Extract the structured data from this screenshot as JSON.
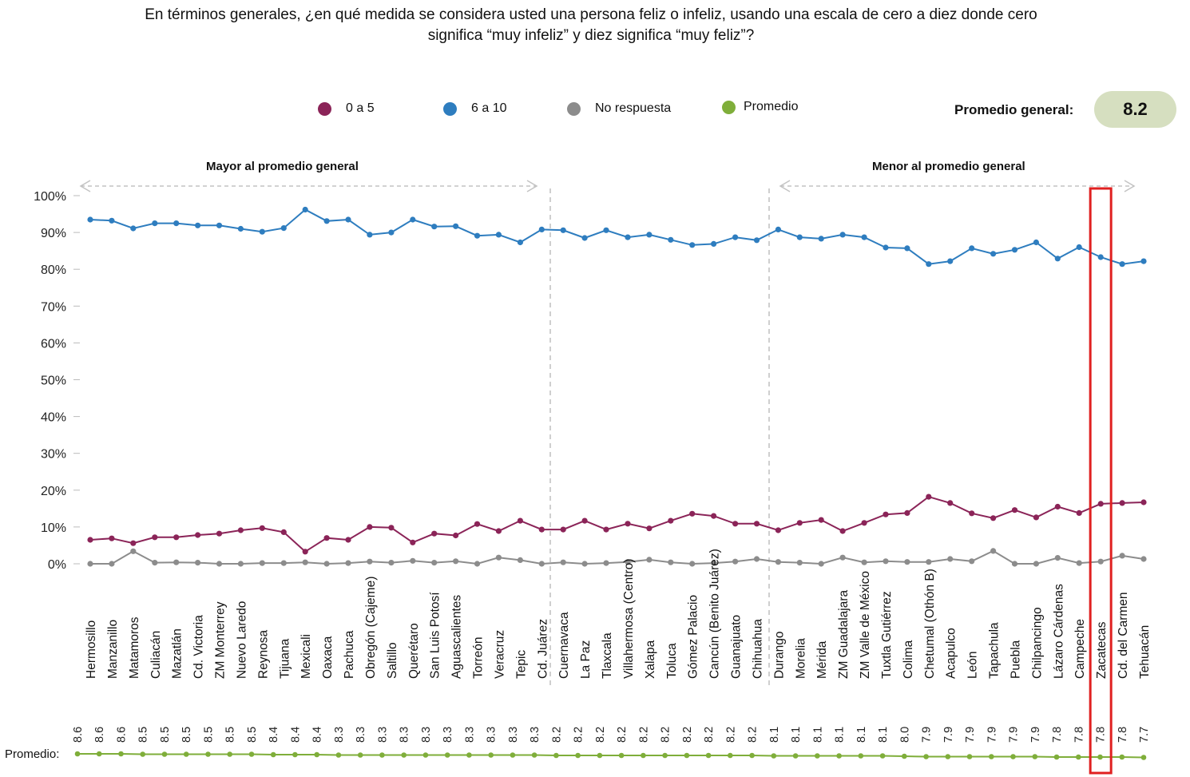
{
  "question": {
    "line1": "En términos generales, ¿en qué medida se considera usted una persona feliz o infeliz, usando una escala de cero a diez donde cero",
    "line2": "significa “muy infeliz” y diez significa “muy feliz”?"
  },
  "legend": [
    {
      "label": "0 a 5",
      "color": "#8b2458"
    },
    {
      "label": "6 a 10",
      "color": "#2e7dbf"
    },
    {
      "label": "No respuesta",
      "color": "#8c8c8c"
    },
    {
      "label": "Promedio",
      "color": "#7fae3a"
    }
  ],
  "promedio_general": {
    "label": "Promedio general:",
    "value": "8.2"
  },
  "sections": {
    "above": "Mayor al promedio general",
    "below": "Menor al promedio general"
  },
  "promedio_row_label": "Promedio:",
  "highlight": {
    "city": "Zacatecas",
    "color": "#e02020"
  },
  "chart_data": {
    "type": "line",
    "y_ticks": [
      "100%",
      "90%",
      "80%",
      "70%",
      "60%",
      "50%",
      "40%",
      "30%",
      "20%",
      "10%",
      "0%"
    ],
    "ylim": [
      0,
      100
    ],
    "categories": [
      "Hermosillo",
      "Manzanillo",
      "Matamoros",
      "Culiacán",
      "Mazatlán",
      "Cd. Victoria",
      "ZM Monterrey",
      "Nuevo Laredo",
      "Reynosa",
      "Tijuana",
      "Mexicali",
      "Oaxaca",
      "Pachuca",
      "Obregón (Cajeme)",
      "Saltillo",
      "Querétaro",
      "San Luis Potosí",
      "Aguascalientes",
      "Torreón",
      "Veracruz",
      "Tepic",
      "Cd. Juárez",
      "Cuernavaca",
      "La Paz",
      "Tlaxcala",
      "Villahermosa (Centro)",
      "Xalapa",
      "Toluca",
      "Gómez Palacio",
      "Cancún (Benito Juárez)",
      "Guanajuato",
      "Chihuahua",
      "Durango",
      "Morelia",
      "Mérida",
      "ZM Guadalajara",
      "ZM Valle de México",
      "Tuxtla Gutiérrez",
      "Colima",
      "Chetumal (Othón B)",
      "Acapulco",
      "León",
      "Tapachula",
      "Puebla",
      "Chilpancingo",
      "Lázaro Cárdenas",
      "Campeche",
      "Zacatecas",
      "Cd. del Carmen",
      "Tehuacán"
    ],
    "promedio": [
      "8.6",
      "8.6",
      "8.6",
      "8.5",
      "8.5",
      "8.5",
      "8.5",
      "8.5",
      "8.5",
      "8.4",
      "8.4",
      "8.4",
      "8.3",
      "8.3",
      "8.3",
      "8.3",
      "8.3",
      "8.3",
      "8.3",
      "8.3",
      "8.3",
      "8.3",
      "8.2",
      "8.2",
      "8.2",
      "8.2",
      "8.2",
      "8.2",
      "8.2",
      "8.2",
      "8.2",
      "8.2",
      "8.1",
      "8.1",
      "8.1",
      "8.1",
      "8.1",
      "8.1",
      "8.0",
      "7.9",
      "7.9",
      "7.9",
      "7.9",
      "7.9",
      "7.9",
      "7.8",
      "7.8",
      "7.8",
      "7.8",
      "7.7"
    ],
    "series": [
      {
        "name": "6 a 10",
        "color": "#2e7dbf",
        "values": [
          93.5,
          93.2,
          91.1,
          92.5,
          92.5,
          91.9,
          91.9,
          91.0,
          90.2,
          91.2,
          96.2,
          93.1,
          93.5,
          89.4,
          90.0,
          93.5,
          91.6,
          91.7,
          89.1,
          89.4,
          87.3,
          90.8,
          90.6,
          88.5,
          90.6,
          88.7,
          89.4,
          88.0,
          86.6,
          86.9,
          88.7,
          87.9,
          90.8,
          88.7,
          88.3,
          89.4,
          88.7,
          85.9,
          85.7,
          81.4,
          82.2,
          85.7,
          84.2,
          85.3,
          87.3,
          82.9,
          86.0,
          83.3,
          81.4,
          82.2
        ]
      },
      {
        "name": "0 a 5",
        "color": "#8b2458",
        "values": [
          6.5,
          6.9,
          5.6,
          7.2,
          7.2,
          7.8,
          8.2,
          9.1,
          9.7,
          8.6,
          3.3,
          7.0,
          6.5,
          10.0,
          9.8,
          5.8,
          8.2,
          7.7,
          10.8,
          8.9,
          11.7,
          9.3,
          9.3,
          11.7,
          9.3,
          10.9,
          9.6,
          11.7,
          13.6,
          13.0,
          10.9,
          10.9,
          9.1,
          11.1,
          11.9,
          8.9,
          11.1,
          13.4,
          13.8,
          18.2,
          16.5,
          13.7,
          12.4,
          14.6,
          12.6,
          15.5,
          13.8,
          16.3,
          16.5,
          16.7
        ]
      },
      {
        "name": "No respuesta",
        "color": "#8c8c8c",
        "values": [
          0.0,
          0.0,
          3.4,
          0.3,
          0.4,
          0.3,
          0.0,
          0.0,
          0.2,
          0.2,
          0.4,
          0.0,
          0.2,
          0.6,
          0.3,
          0.8,
          0.3,
          0.7,
          0.0,
          1.7,
          1.0,
          0.0,
          0.4,
          0.0,
          0.2,
          0.5,
          1.1,
          0.4,
          0.0,
          0.2,
          0.6,
          1.3,
          0.5,
          0.3,
          0.0,
          1.7,
          0.4,
          0.7,
          0.5,
          0.5,
          1.3,
          0.7,
          3.5,
          0.0,
          0.0,
          1.6,
          0.2,
          0.6,
          2.2,
          1.3
        ]
      }
    ]
  }
}
